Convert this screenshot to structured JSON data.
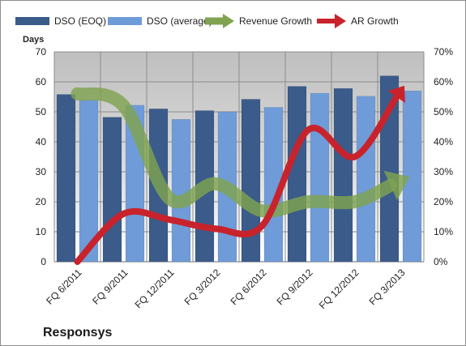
{
  "chart_data": {
    "type": "bar",
    "title": "Responsys",
    "ylabel": "Days",
    "categories": [
      "FQ 6/2011",
      "FQ 9/2011",
      "FQ 12/2011",
      "FQ 3/2012",
      "FQ 6/2012",
      "FQ 9/2012",
      "FQ 12/2012",
      "FQ 3/2013"
    ],
    "ylim": [
      0,
      70
    ],
    "yticks": [
      0,
      10,
      20,
      30,
      40,
      50,
      60,
      70
    ],
    "y2lim": [
      0,
      0.7
    ],
    "y2ticks": [
      "0%",
      "10%",
      "20%",
      "30%",
      "40%",
      "50%",
      "60%",
      "70%"
    ],
    "legend_position": "top",
    "grid": true,
    "series": [
      {
        "name": "DSO (EOQ)",
        "kind": "bar",
        "axis": "left",
        "color": "#3b5b8a",
        "values": [
          55.8,
          48.2,
          51.0,
          50.4,
          54.2,
          58.5,
          57.8,
          62.0
        ]
      },
      {
        "name": "DSO (average)",
        "kind": "bar",
        "axis": "left",
        "color": "#6f9bd8",
        "values": [
          54.0,
          52.2,
          47.5,
          50.0,
          51.5,
          56.2,
          55.2,
          57.0
        ]
      },
      {
        "name": "Revenue Growth",
        "kind": "arrow-line",
        "axis": "right",
        "color": "#7fa34f",
        "values": [
          0.56,
          0.52,
          0.21,
          0.26,
          0.17,
          0.2,
          0.2,
          0.27
        ]
      },
      {
        "name": "AR Growth",
        "kind": "arrow-line",
        "axis": "right",
        "color": "#c8232c",
        "values": [
          0.0,
          0.16,
          0.14,
          0.11,
          0.12,
          0.44,
          0.35,
          0.57
        ]
      }
    ]
  }
}
